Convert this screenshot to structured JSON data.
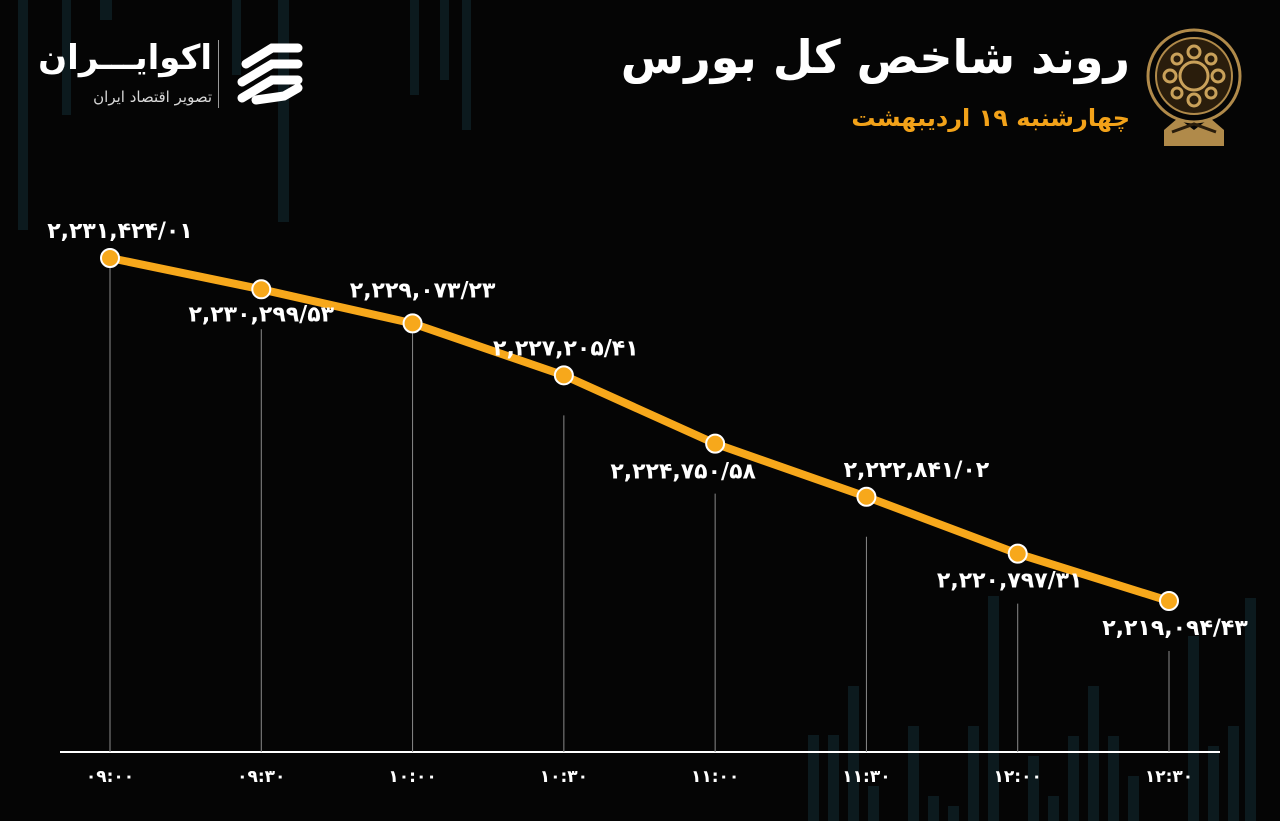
{
  "header": {
    "title": "روند شاخص کل بورس",
    "subtitle": "چهارشنبه ۱۹ اردیبهشت"
  },
  "brand": {
    "name": "اکوایـــران",
    "tagline": "تصویر اقتصاد ایران",
    "logo_icon": "ecoiran-logo-icon"
  },
  "seal": {
    "icon": "stock-exchange-seal-icon"
  },
  "colors": {
    "background": "#050505",
    "line": "#f7a81b",
    "accent": "#f2a219",
    "text": "#ffffff"
  },
  "chart_data": {
    "type": "line",
    "title": "روند شاخص کل بورس",
    "subtitle": "چهارشنبه ۱۹ اردیبهشت",
    "x": [
      "۰۹:۰۰",
      "۰۹:۳۰",
      "۱۰:۰۰",
      "۱۰:۳۰",
      "۱۱:۰۰",
      "۱۱:۳۰",
      "۱۲:۰۰",
      "۱۲:۳۰"
    ],
    "series": [
      {
        "values": [
          2231424.01,
          2230299.53,
          2229073.23,
          2227205.41,
          2224750.58,
          2222841.02,
          2220797.31,
          2219094.43
        ],
        "labels": [
          "۲,۲۳۱,۴۲۴/۰۱",
          "۲,۲۳۰,۲۹۹/۵۳",
          "۲,۲۲۹,۰۷۳/۲۳",
          "۲,۲۲۷,۲۰۵/۴۱",
          "۲,۲۲۴,۷۵۰/۵۸",
          "۲,۲۲۲,۸۴۱/۰۲",
          "۲,۲۲۰,۷۹۷/۳۱",
          "۲,۲۱۹,۰۹۴/۴۳"
        ]
      }
    ],
    "grid": false,
    "legend": "none"
  }
}
